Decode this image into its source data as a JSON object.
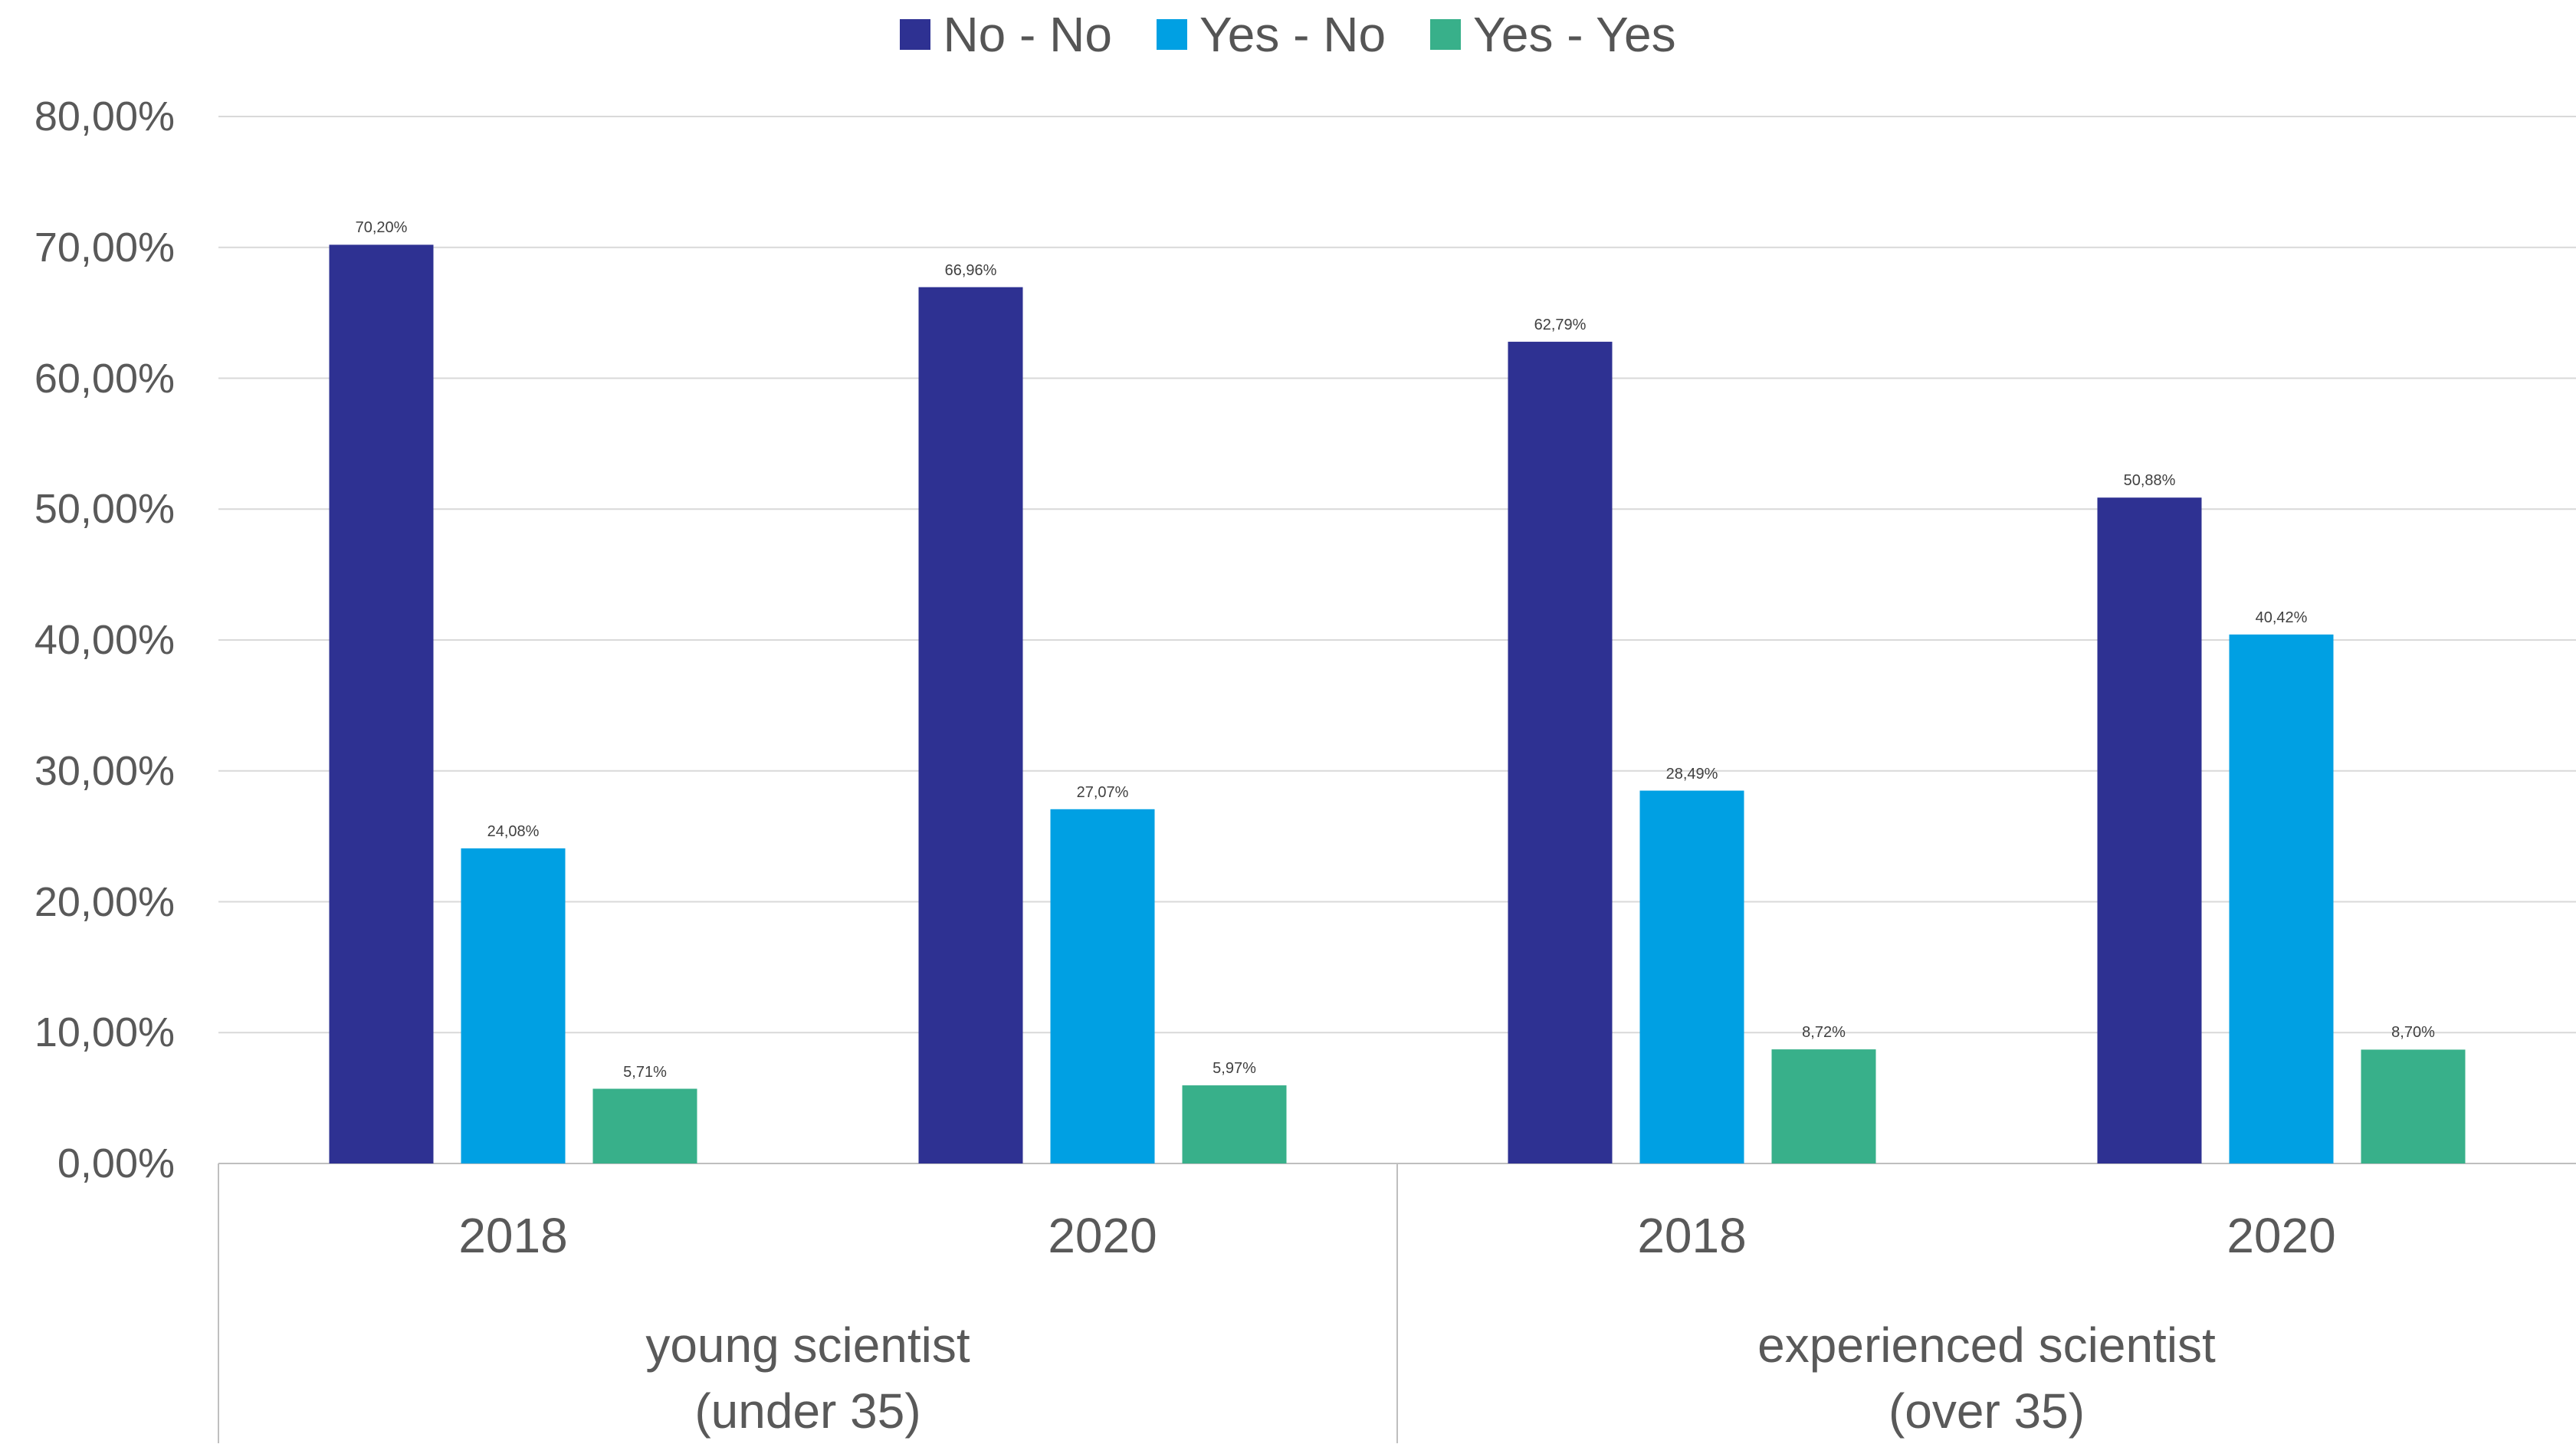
{
  "chart_data": {
    "type": "bar",
    "groups": [
      {
        "label_line1": "young scientist",
        "label_line2": "(under 35)",
        "categories": [
          "2018",
          "2020"
        ]
      },
      {
        "label_line1": "experienced scientist",
        "label_line2": "(over 35)",
        "categories": [
          "2018",
          "2020"
        ]
      }
    ],
    "categories": [
      "2018",
      "2020",
      "2018",
      "2020"
    ],
    "series": [
      {
        "name": "No - No",
        "color": "#2E3192",
        "values": [
          70.2,
          66.96,
          62.79,
          50.88
        ],
        "labels": [
          "70,20%",
          "66,96%",
          "62,79%",
          "50,88%"
        ]
      },
      {
        "name": "Yes - No",
        "color": "#00A0E3",
        "values": [
          24.08,
          27.07,
          28.49,
          40.42
        ],
        "labels": [
          "24,08%",
          "27,07%",
          "28,49%",
          "40,42%"
        ]
      },
      {
        "name": "Yes - Yes",
        "color": "#38B08A",
        "values": [
          5.71,
          5.97,
          8.72,
          8.7
        ],
        "labels": [
          "5,71%",
          "5,97%",
          "8,72%",
          "8,70%"
        ]
      }
    ],
    "ylim": [
      0,
      80
    ],
    "yticks": [
      0,
      10,
      20,
      30,
      40,
      50,
      60,
      70,
      80
    ],
    "ytick_labels": [
      "0,00%",
      "10,00%",
      "20,00%",
      "30,00%",
      "40,00%",
      "50,00%",
      "60,00%",
      "70,00%",
      "80,00%"
    ],
    "legend_position": "top",
    "grid": true,
    "title": "",
    "xlabel": "",
    "ylabel": ""
  }
}
